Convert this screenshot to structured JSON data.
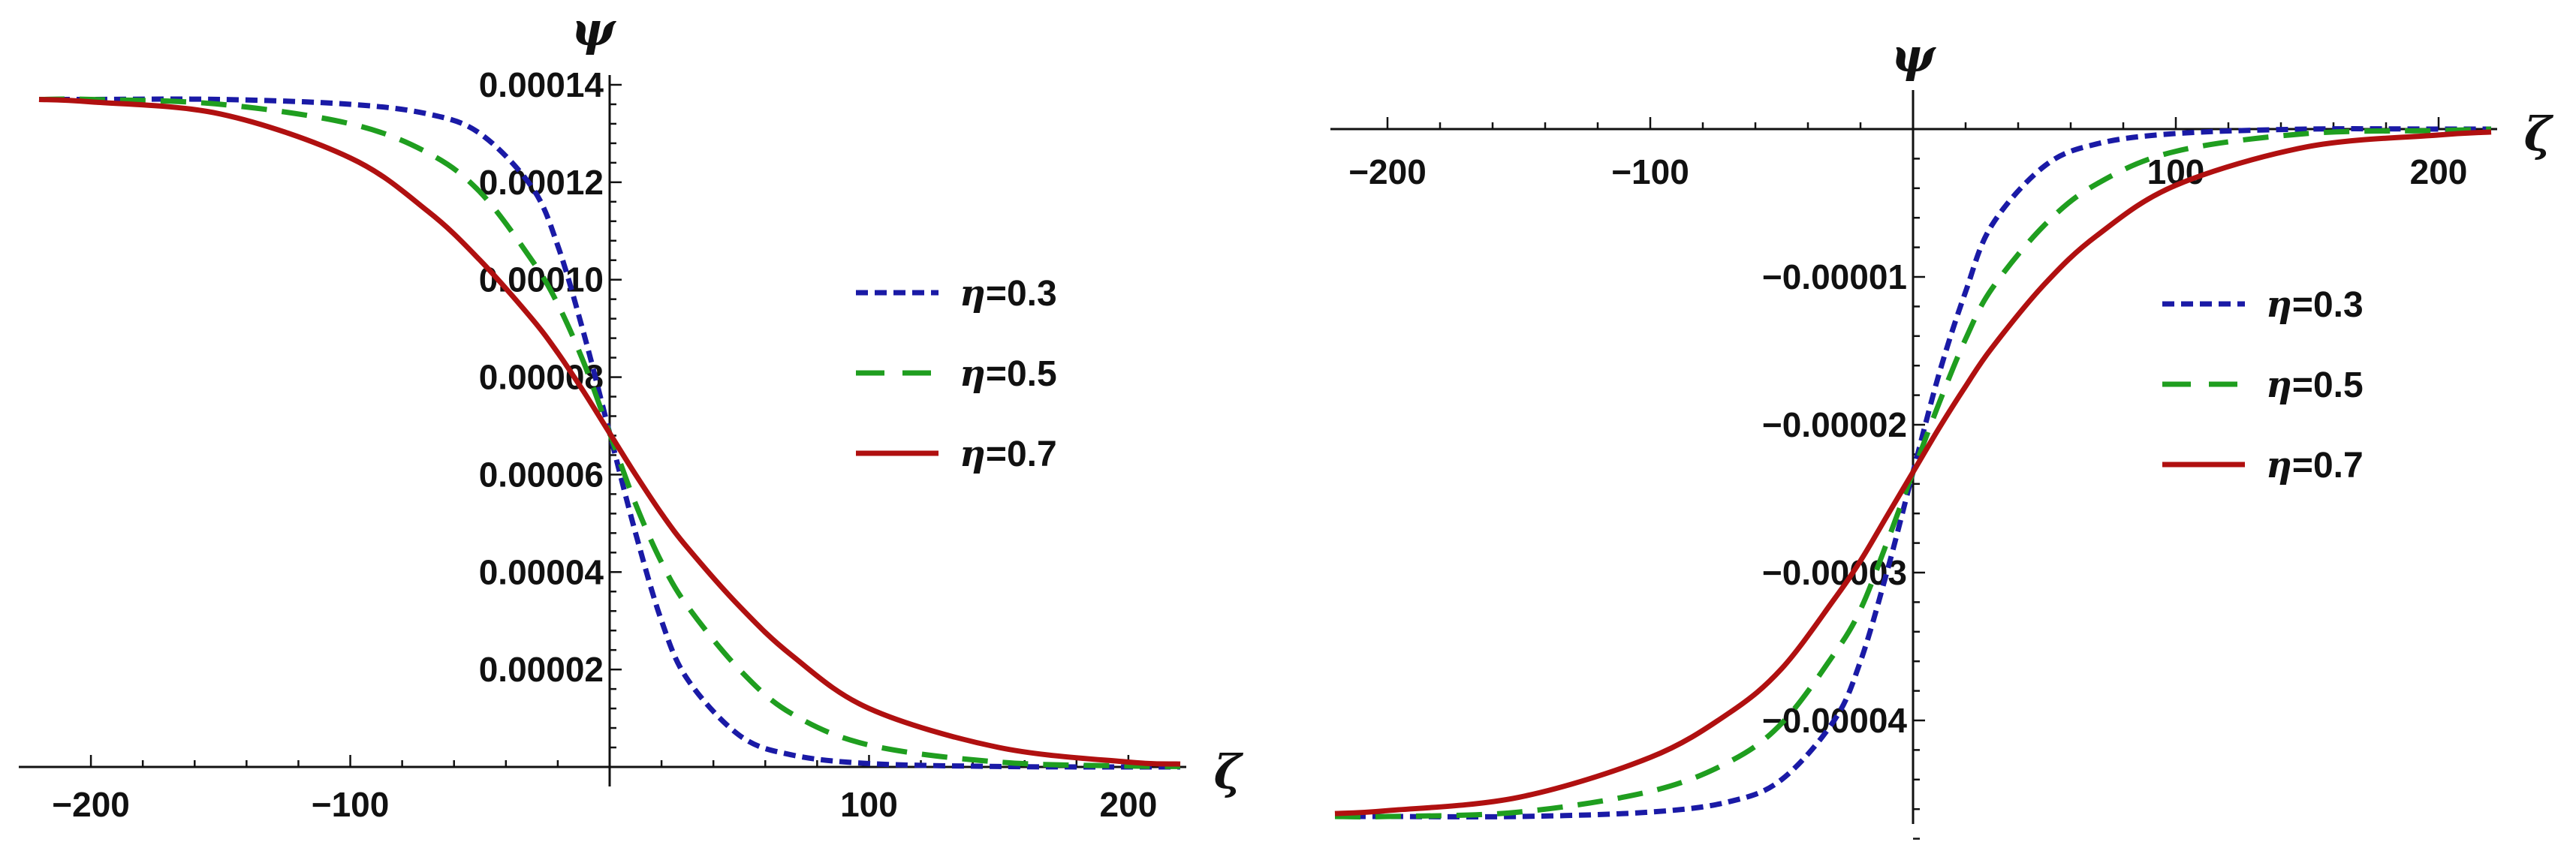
{
  "chart_data": [
    {
      "type": "line",
      "title": "",
      "xlabel": "ζ",
      "ylabel": "ψ",
      "xlim": [
        -220,
        220
      ],
      "ylim": [
        0,
        0.000142
      ],
      "grid": false,
      "legend_position": "right",
      "xticks": [
        -200,
        -100,
        100,
        200
      ],
      "xtick_labels": [
        "-200",
        "-100",
        "100",
        "200"
      ],
      "yticks": [
        2e-05,
        4e-05,
        6e-05,
        8e-05,
        0.0001,
        0.00012,
        0.00014
      ],
      "ytick_labels": [
        "0.00002",
        "0.00004",
        "0.00006",
        "0.00008",
        "0.00010",
        "0.00012",
        "0.00014"
      ],
      "series": [
        {
          "name": "η=0.3",
          "color": "#1a1aa6",
          "dash": "dotted",
          "x": [
            -220,
            -200,
            -150,
            -100,
            -70,
            -50,
            -30,
            -20,
            -10,
            0,
            10,
            20,
            30,
            50,
            70,
            100,
            150,
            200,
            220
          ],
          "y": [
            0.000137,
            0.000137,
            0.000137,
            0.000136,
            0.000134,
            0.00013,
            0.000119,
            0.000107,
            8.9e-05,
            6.85e-05,
            4.8e-05,
            3e-05,
            1.8e-05,
            6.5e-06,
            2.5e-06,
            7e-07,
            1e-07,
            0.0,
            0.0
          ]
        },
        {
          "name": "η=0.5",
          "color": "#1f9e1f",
          "dash": "dashed",
          "x": [
            -220,
            -200,
            -150,
            -100,
            -70,
            -50,
            -30,
            -20,
            -10,
            0,
            10,
            20,
            30,
            50,
            70,
            100,
            150,
            200,
            220
          ],
          "y": [
            0.000137,
            0.000137,
            0.000136,
            0.000132,
            0.000126,
            0.000118,
            0.000104,
            9.5e-05,
            8.3e-05,
            6.85e-05,
            5.4e-05,
            4.2e-05,
            3.3e-05,
            2e-05,
            1.1e-05,
            4.5e-06,
            1e-06,
            2e-07,
            1e-07
          ]
        },
        {
          "name": "η=0.7",
          "color": "#b01010",
          "dash": "solid",
          "x": [
            -220,
            -200,
            -150,
            -100,
            -70,
            -50,
            -30,
            -20,
            -10,
            0,
            10,
            20,
            30,
            50,
            70,
            100,
            150,
            200,
            220
          ],
          "y": [
            0.000137,
            0.0001365,
            0.000134,
            0.000125,
            0.000114,
            0.000104,
            9.2e-05,
            8.5e-05,
            7.7e-05,
            6.85e-05,
            6e-05,
            5.2e-05,
            4.5e-05,
            3.3e-05,
            2.3e-05,
            1.2e-05,
            4e-06,
            1e-06,
            6e-07
          ]
        }
      ]
    },
    {
      "type": "line",
      "title": "",
      "xlabel": "ζ",
      "ylabel": "ψ",
      "xlim": [
        -220,
        220
      ],
      "ylim": [
        -4.75e-05,
        0
      ],
      "grid": false,
      "legend_position": "right",
      "xticks": [
        -200,
        -100,
        100,
        200
      ],
      "xtick_labels": [
        "-200",
        "-100",
        "100",
        "200"
      ],
      "yticks": [
        -1e-05,
        -2e-05,
        -3e-05,
        -4e-05
      ],
      "ytick_labels": [
        "-0.00001",
        "-0.00002",
        "-0.00003",
        "-0.00004"
      ],
      "series": [
        {
          "name": "η=0.3",
          "color": "#1a1aa6",
          "dash": "dotted",
          "x": [
            -220,
            -200,
            -150,
            -100,
            -70,
            -50,
            -30,
            -20,
            -10,
            0,
            10,
            20,
            30,
            50,
            70,
            100,
            150,
            200,
            220
          ],
          "y": [
            -4.65e-05,
            -4.65e-05,
            -4.65e-05,
            -4.62e-05,
            -4.55e-05,
            -4.4e-05,
            -4e-05,
            -3.6e-05,
            -3e-05,
            -2.32e-05,
            -1.65e-05,
            -1.1e-05,
            -6.5e-06,
            -2.5e-06,
            -1e-06,
            -3e-07,
            0.0,
            0.0,
            0.0
          ]
        },
        {
          "name": "η=0.5",
          "color": "#1f9e1f",
          "dash": "dashed",
          "x": [
            -220,
            -200,
            -150,
            -100,
            -70,
            -50,
            -30,
            -20,
            -10,
            0,
            10,
            20,
            30,
            50,
            70,
            100,
            150,
            200,
            220
          ],
          "y": [
            -4.65e-05,
            -4.65e-05,
            -4.62e-05,
            -4.48e-05,
            -4.28e-05,
            -4.02e-05,
            -3.55e-05,
            -3.25e-05,
            -2.8e-05,
            -2.32e-05,
            -1.85e-05,
            -1.42e-05,
            -1.08e-05,
            -6.5e-06,
            -3.7e-06,
            -1.5e-06,
            -3e-07,
            -1e-07,
            0.0
          ]
        },
        {
          "name": "η=0.7",
          "color": "#b01010",
          "dash": "solid",
          "x": [
            -220,
            -200,
            -150,
            -100,
            -70,
            -50,
            -30,
            -20,
            -10,
            0,
            10,
            20,
            30,
            50,
            70,
            100,
            150,
            200,
            220
          ],
          "y": [
            -4.63e-05,
            -4.61e-05,
            -4.52e-05,
            -4.25e-05,
            -3.95e-05,
            -3.65e-05,
            -3.18e-05,
            -2.92e-05,
            -2.62e-05,
            -2.32e-05,
            -2.02e-05,
            -1.74e-05,
            -1.48e-05,
            -1.05e-05,
            -7.2e-06,
            -3.8e-06,
            -1.2e-06,
            -4e-07,
            -2e-07
          ]
        }
      ]
    }
  ]
}
